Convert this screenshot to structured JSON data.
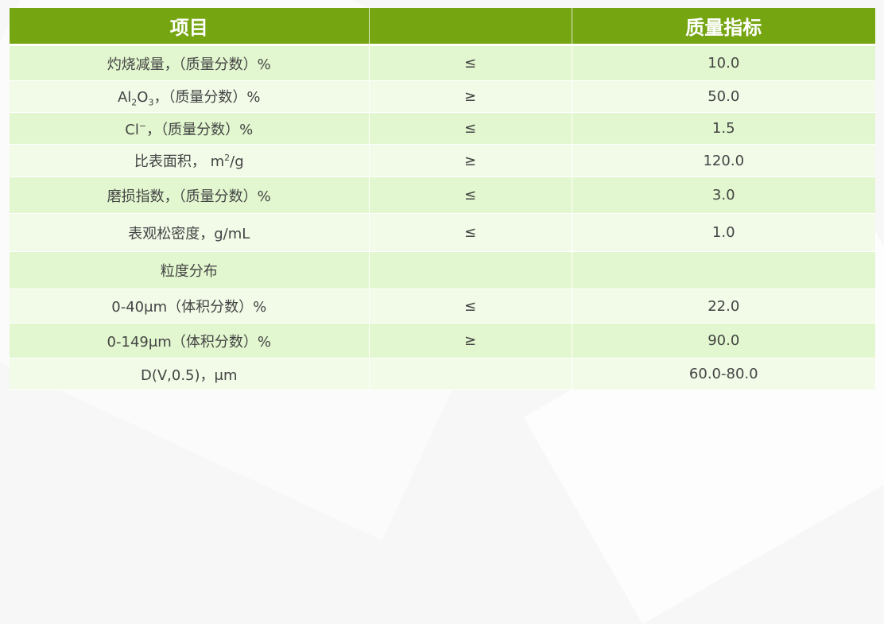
{
  "colors": {
    "header": "#76a512",
    "row_dark": "#e2f7cf",
    "row_light": "#f1fbe8"
  },
  "table": {
    "headers": [
      "项目",
      "",
      "质量指标"
    ],
    "rows": [
      {
        "item": "灼烧减量，（质量分数）%",
        "op": "≤",
        "value": "10.0"
      },
      {
        "item_pre": "Al",
        "item_sub1": "2",
        "item_mid": "O",
        "item_sub2": "3",
        "item_post": "，（质量分数）%",
        "op": "≥",
        "value": "50.0"
      },
      {
        "item_pre": "Cl",
        "item_sup": "−",
        "item_post": "，（质量分数）%",
        "op": "≤",
        "value": "1.5"
      },
      {
        "item_pre": "比表面积， m",
        "item_sup": "2",
        "item_post": "/g",
        "op": "≥",
        "value": "120.0"
      },
      {
        "item": "磨损指数，（质量分数）%",
        "op": "≤",
        "value": "3.0"
      },
      {
        "item": "表观松密度，g/mL",
        "op": "≤",
        "value": "1.0"
      },
      {
        "item": "粒度分布",
        "op": "",
        "value": ""
      },
      {
        "item": "0-40μm（体积分数）%",
        "op": "≤",
        "value": "22.0"
      },
      {
        "item": "0-149μm（体积分数）%",
        "op": "≥",
        "value": "90.0"
      },
      {
        "item": "D(V,0.5)，μm",
        "op": "",
        "value": "60.0-80.0"
      }
    ]
  }
}
